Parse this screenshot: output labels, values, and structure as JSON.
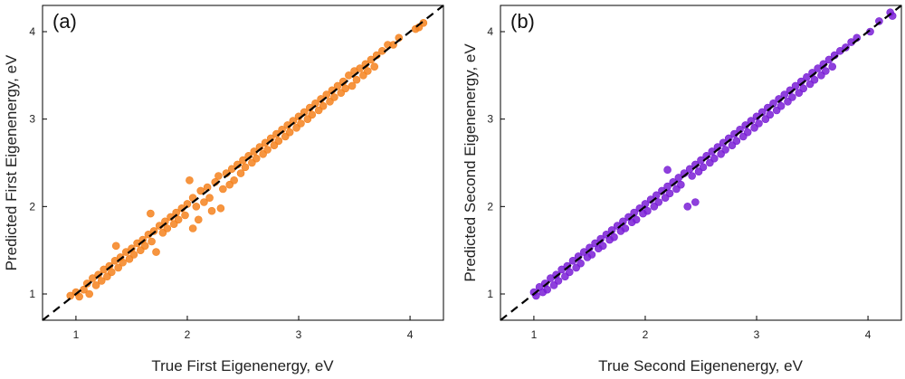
{
  "chart_data": [
    {
      "type": "scatter",
      "panel_label": "(a)",
      "title": "",
      "xlabel": "True First Eigenenergy, eV",
      "ylabel": "Predicted First Eigenenergy, eV",
      "xlim": [
        0.7,
        4.3
      ],
      "ylim": [
        0.7,
        4.3
      ],
      "xticks": [
        1,
        2,
        3,
        4
      ],
      "yticks": [
        1,
        2,
        3,
        4
      ],
      "grid": false,
      "marker_color": "#F5821F",
      "reference_line": {
        "style": "dashed",
        "color": "#000000",
        "equation": "y = x"
      },
      "series": [
        {
          "points": [
            [
              0.95,
              0.98
            ],
            [
              1.0,
              1.02
            ],
            [
              1.03,
              0.97
            ],
            [
              1.07,
              1.05
            ],
            [
              1.1,
              1.12
            ],
            [
              1.12,
              1.0
            ],
            [
              1.15,
              1.18
            ],
            [
              1.18,
              1.1
            ],
            [
              1.2,
              1.22
            ],
            [
              1.23,
              1.15
            ],
            [
              1.25,
              1.28
            ],
            [
              1.28,
              1.2
            ],
            [
              1.3,
              1.32
            ],
            [
              1.32,
              1.25
            ],
            [
              1.35,
              1.38
            ],
            [
              1.36,
              1.55
            ],
            [
              1.38,
              1.3
            ],
            [
              1.4,
              1.42
            ],
            [
              1.42,
              1.36
            ],
            [
              1.45,
              1.48
            ],
            [
              1.48,
              1.4
            ],
            [
              1.5,
              1.52
            ],
            [
              1.52,
              1.45
            ],
            [
              1.55,
              1.58
            ],
            [
              1.58,
              1.5
            ],
            [
              1.6,
              1.62
            ],
            [
              1.62,
              1.55
            ],
            [
              1.65,
              1.68
            ],
            [
              1.67,
              1.92
            ],
            [
              1.68,
              1.6
            ],
            [
              1.7,
              1.72
            ],
            [
              1.72,
              1.48
            ],
            [
              1.75,
              1.78
            ],
            [
              1.78,
              1.7
            ],
            [
              1.8,
              1.83
            ],
            [
              1.82,
              1.75
            ],
            [
              1.85,
              1.88
            ],
            [
              1.88,
              1.8
            ],
            [
              1.9,
              1.93
            ],
            [
              1.92,
              1.85
            ],
            [
              1.95,
              1.98
            ],
            [
              1.98,
              1.9
            ],
            [
              2.0,
              2.03
            ],
            [
              2.02,
              2.3
            ],
            [
              2.05,
              2.1
            ],
            [
              2.05,
              1.75
            ],
            [
              2.08,
              2.0
            ],
            [
              2.1,
              1.85
            ],
            [
              2.12,
              2.18
            ],
            [
              2.15,
              2.05
            ],
            [
              2.18,
              2.22
            ],
            [
              2.2,
              2.1
            ],
            [
              2.22,
              1.95
            ],
            [
              2.25,
              2.28
            ],
            [
              2.28,
              2.35
            ],
            [
              2.3,
              1.98
            ],
            [
              2.32,
              2.2
            ],
            [
              2.35,
              2.38
            ],
            [
              2.38,
              2.25
            ],
            [
              2.4,
              2.43
            ],
            [
              2.42,
              2.3
            ],
            [
              2.45,
              2.48
            ],
            [
              2.48,
              2.38
            ],
            [
              2.5,
              2.53
            ],
            [
              2.52,
              2.45
            ],
            [
              2.55,
              2.58
            ],
            [
              2.58,
              2.5
            ],
            [
              2.6,
              2.63
            ],
            [
              2.62,
              2.55
            ],
            [
              2.65,
              2.68
            ],
            [
              2.68,
              2.6
            ],
            [
              2.7,
              2.73
            ],
            [
              2.72,
              2.65
            ],
            [
              2.75,
              2.78
            ],
            [
              2.78,
              2.7
            ],
            [
              2.8,
              2.83
            ],
            [
              2.82,
              2.75
            ],
            [
              2.85,
              2.88
            ],
            [
              2.88,
              2.8
            ],
            [
              2.9,
              2.93
            ],
            [
              2.92,
              2.85
            ],
            [
              2.95,
              2.98
            ],
            [
              2.98,
              2.9
            ],
            [
              3.0,
              3.03
            ],
            [
              3.02,
              2.95
            ],
            [
              3.05,
              3.08
            ],
            [
              3.08,
              3.0
            ],
            [
              3.1,
              3.13
            ],
            [
              3.12,
              3.05
            ],
            [
              3.15,
              3.18
            ],
            [
              3.18,
              3.1
            ],
            [
              3.2,
              3.23
            ],
            [
              3.22,
              3.15
            ],
            [
              3.25,
              3.28
            ],
            [
              3.28,
              3.2
            ],
            [
              3.3,
              3.33
            ],
            [
              3.32,
              3.25
            ],
            [
              3.35,
              3.38
            ],
            [
              3.38,
              3.3
            ],
            [
              3.4,
              3.43
            ],
            [
              3.42,
              3.35
            ],
            [
              3.45,
              3.5
            ],
            [
              3.48,
              3.38
            ],
            [
              3.5,
              3.55
            ],
            [
              3.52,
              3.45
            ],
            [
              3.55,
              3.58
            ],
            [
              3.58,
              3.5
            ],
            [
              3.6,
              3.63
            ],
            [
              3.62,
              3.55
            ],
            [
              3.65,
              3.68
            ],
            [
              3.68,
              3.6
            ],
            [
              3.7,
              3.73
            ],
            [
              3.75,
              3.78
            ],
            [
              3.8,
              3.85
            ],
            [
              3.85,
              3.85
            ],
            [
              3.9,
              3.93
            ],
            [
              4.05,
              4.03
            ],
            [
              4.08,
              4.05
            ],
            [
              4.12,
              4.1
            ]
          ]
        }
      ]
    },
    {
      "type": "scatter",
      "panel_label": "(b)",
      "title": "",
      "xlabel": "True Second Eigenenergy, eV",
      "ylabel": "Predicted Second Eigenenergy, eV",
      "xlim": [
        0.7,
        4.3
      ],
      "ylim": [
        0.7,
        4.3
      ],
      "xticks": [
        1,
        2,
        3,
        4
      ],
      "yticks": [
        1,
        2,
        3,
        4
      ],
      "grid": false,
      "marker_color": "#7A1FD6",
      "reference_line": {
        "style": "dashed",
        "color": "#000000",
        "equation": "y = x"
      },
      "series": [
        {
          "points": [
            [
              1.0,
              1.02
            ],
            [
              1.02,
              0.98
            ],
            [
              1.05,
              1.08
            ],
            [
              1.08,
              1.02
            ],
            [
              1.1,
              1.12
            ],
            [
              1.12,
              1.05
            ],
            [
              1.15,
              1.18
            ],
            [
              1.18,
              1.1
            ],
            [
              1.2,
              1.22
            ],
            [
              1.22,
              1.15
            ],
            [
              1.25,
              1.28
            ],
            [
              1.28,
              1.2
            ],
            [
              1.3,
              1.32
            ],
            [
              1.32,
              1.25
            ],
            [
              1.35,
              1.38
            ],
            [
              1.38,
              1.3
            ],
            [
              1.4,
              1.43
            ],
            [
              1.42,
              1.35
            ],
            [
              1.45,
              1.48
            ],
            [
              1.48,
              1.42
            ],
            [
              1.5,
              1.53
            ],
            [
              1.52,
              1.45
            ],
            [
              1.55,
              1.58
            ],
            [
              1.58,
              1.52
            ],
            [
              1.6,
              1.63
            ],
            [
              1.62,
              1.55
            ],
            [
              1.65,
              1.68
            ],
            [
              1.68,
              1.62
            ],
            [
              1.7,
              1.73
            ],
            [
              1.72,
              1.65
            ],
            [
              1.75,
              1.78
            ],
            [
              1.78,
              1.72
            ],
            [
              1.8,
              1.83
            ],
            [
              1.82,
              1.75
            ],
            [
              1.85,
              1.88
            ],
            [
              1.88,
              1.82
            ],
            [
              1.9,
              1.93
            ],
            [
              1.92,
              1.85
            ],
            [
              1.95,
              1.98
            ],
            [
              1.98,
              1.92
            ],
            [
              2.0,
              2.03
            ],
            [
              2.02,
              1.95
            ],
            [
              2.05,
              2.08
            ],
            [
              2.08,
              2.0
            ],
            [
              2.1,
              2.13
            ],
            [
              2.12,
              2.05
            ],
            [
              2.15,
              2.18
            ],
            [
              2.18,
              2.1
            ],
            [
              2.2,
              2.23
            ],
            [
              2.2,
              2.42
            ],
            [
              2.22,
              2.15
            ],
            [
              2.25,
              2.28
            ],
            [
              2.28,
              2.2
            ],
            [
              2.3,
              2.33
            ],
            [
              2.32,
              2.25
            ],
            [
              2.35,
              2.38
            ],
            [
              2.38,
              2.0
            ],
            [
              2.4,
              2.43
            ],
            [
              2.42,
              2.35
            ],
            [
              2.45,
              2.48
            ],
            [
              2.45,
              2.05
            ],
            [
              2.48,
              2.4
            ],
            [
              2.5,
              2.53
            ],
            [
              2.52,
              2.45
            ],
            [
              2.55,
              2.58
            ],
            [
              2.58,
              2.5
            ],
            [
              2.6,
              2.63
            ],
            [
              2.62,
              2.55
            ],
            [
              2.65,
              2.68
            ],
            [
              2.68,
              2.6
            ],
            [
              2.7,
              2.73
            ],
            [
              2.72,
              2.65
            ],
            [
              2.75,
              2.78
            ],
            [
              2.78,
              2.7
            ],
            [
              2.8,
              2.83
            ],
            [
              2.82,
              2.75
            ],
            [
              2.85,
              2.88
            ],
            [
              2.88,
              2.8
            ],
            [
              2.9,
              2.93
            ],
            [
              2.92,
              2.85
            ],
            [
              2.95,
              2.98
            ],
            [
              2.98,
              2.9
            ],
            [
              3.0,
              3.03
            ],
            [
              3.02,
              2.95
            ],
            [
              3.05,
              3.08
            ],
            [
              3.08,
              3.0
            ],
            [
              3.1,
              3.13
            ],
            [
              3.12,
              3.05
            ],
            [
              3.15,
              3.18
            ],
            [
              3.18,
              3.1
            ],
            [
              3.2,
              3.23
            ],
            [
              3.22,
              3.15
            ],
            [
              3.25,
              3.28
            ],
            [
              3.28,
              3.2
            ],
            [
              3.3,
              3.33
            ],
            [
              3.32,
              3.25
            ],
            [
              3.35,
              3.38
            ],
            [
              3.38,
              3.3
            ],
            [
              3.4,
              3.43
            ],
            [
              3.42,
              3.35
            ],
            [
              3.45,
              3.48
            ],
            [
              3.48,
              3.4
            ],
            [
              3.5,
              3.53
            ],
            [
              3.52,
              3.45
            ],
            [
              3.55,
              3.58
            ],
            [
              3.58,
              3.5
            ],
            [
              3.6,
              3.63
            ],
            [
              3.62,
              3.55
            ],
            [
              3.65,
              3.68
            ],
            [
              3.68,
              3.6
            ],
            [
              3.7,
              3.73
            ],
            [
              3.75,
              3.78
            ],
            [
              3.8,
              3.82
            ],
            [
              3.85,
              3.88
            ],
            [
              3.9,
              3.93
            ],
            [
              4.02,
              4.0
            ],
            [
              4.1,
              4.12
            ],
            [
              4.2,
              4.22
            ],
            [
              4.22,
              4.18
            ]
          ]
        }
      ]
    }
  ]
}
